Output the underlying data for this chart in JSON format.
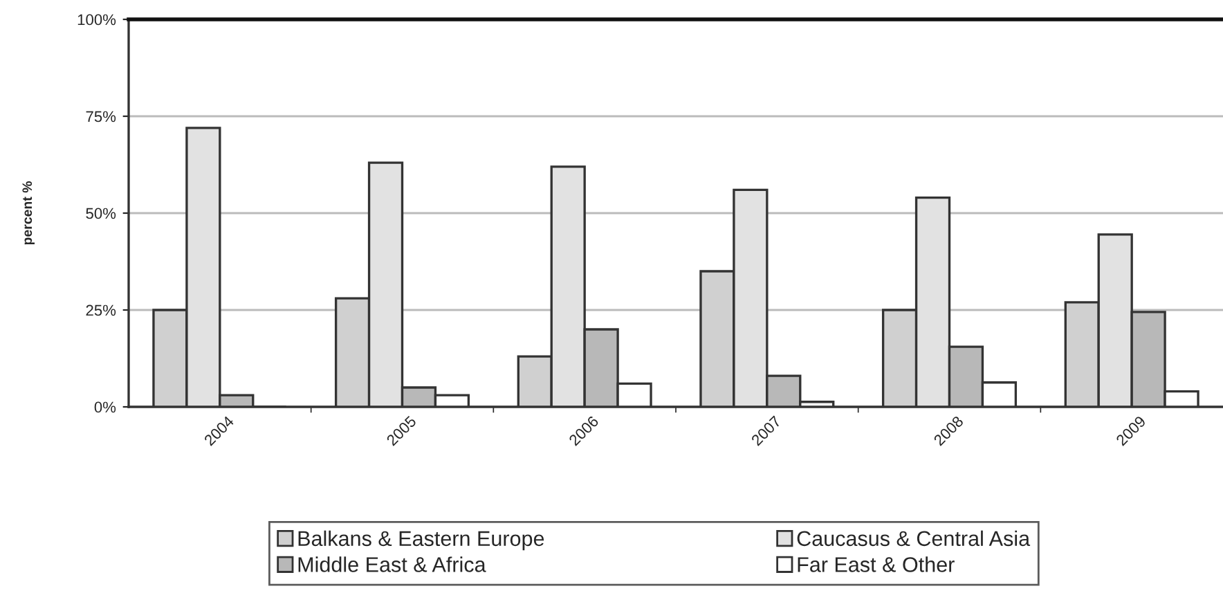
{
  "chart_data": {
    "type": "bar",
    "ylabel": "percent %",
    "categories": [
      "2004",
      "2005",
      "2006",
      "2007",
      "2008",
      "2009"
    ],
    "series": [
      {
        "name": "Balkans & Eastern Europe",
        "color": "#d0d0d0",
        "values": [
          25,
          28,
          13,
          35,
          25,
          27
        ]
      },
      {
        "name": "Caucasus & Central Asia",
        "color": "#e2e2e2",
        "values": [
          72,
          63,
          62,
          56,
          54,
          44.5
        ]
      },
      {
        "name": "Middle East & Africa",
        "color": "#b8b8b8",
        "values": [
          3,
          5,
          20,
          8,
          15.5,
          24.5
        ]
      },
      {
        "name": "Far East & Other",
        "color": "#ffffff",
        "values": [
          0,
          3,
          6,
          1.3,
          6.3,
          4
        ]
      }
    ],
    "ylim": [
      0,
      100
    ],
    "yticks": [
      {
        "value": 0,
        "label": "0%"
      },
      {
        "value": 25,
        "label": "25%"
      },
      {
        "value": 50,
        "label": "50%"
      },
      {
        "value": 75,
        "label": "75%"
      },
      {
        "value": 100,
        "label": "100%"
      }
    ],
    "grid": "y",
    "legend": "bottom"
  }
}
